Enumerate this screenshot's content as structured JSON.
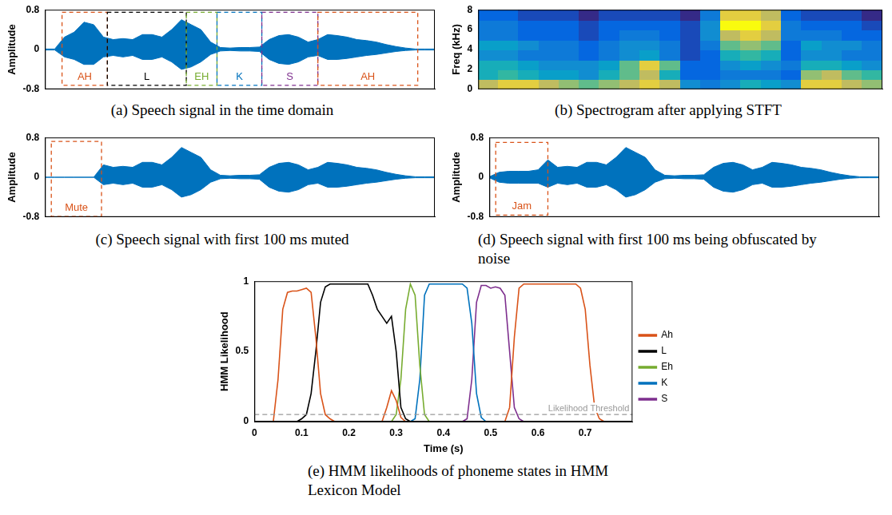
{
  "chart_data": [
    {
      "type": "area",
      "caption": "(a) Speech signal in the time domain",
      "y_label": "Amplitude",
      "xlim": [
        0,
        0.8
      ],
      "ylim": [
        -0.8,
        0.8
      ],
      "yticks": [
        -0.8,
        0,
        0.8
      ],
      "tick_labels": "y",
      "grid": false,
      "color": "#0072bd",
      "x": [
        0,
        0.02,
        0.04,
        0.06,
        0.08,
        0.1,
        0.12,
        0.14,
        0.16,
        0.18,
        0.2,
        0.22,
        0.24,
        0.26,
        0.28,
        0.3,
        0.32,
        0.34,
        0.36,
        0.38,
        0.4,
        0.42,
        0.44,
        0.46,
        0.48,
        0.5,
        0.52,
        0.54,
        0.56,
        0.58,
        0.6,
        0.62,
        0.64,
        0.66,
        0.68,
        0.7,
        0.72,
        0.74,
        0.76,
        0.78,
        0.8
      ],
      "upper": [
        0.01,
        0.01,
        0.25,
        0.35,
        0.55,
        0.5,
        0.25,
        0.2,
        0.22,
        0.2,
        0.3,
        0.3,
        0.25,
        0.4,
        0.6,
        0.5,
        0.4,
        0.15,
        0.04,
        0.03,
        0.04,
        0.04,
        0.05,
        0.2,
        0.28,
        0.3,
        0.25,
        0.15,
        0.2,
        0.3,
        0.28,
        0.25,
        0.2,
        0.18,
        0.15,
        0.1,
        0.06,
        0.03,
        0.01,
        0.01,
        0.01
      ],
      "lower": [
        -0.01,
        -0.01,
        -0.15,
        -0.2,
        -0.3,
        -0.3,
        -0.15,
        -0.12,
        -0.15,
        -0.12,
        -0.2,
        -0.2,
        -0.15,
        -0.25,
        -0.4,
        -0.35,
        -0.25,
        -0.1,
        -0.03,
        -0.02,
        -0.03,
        -0.03,
        -0.04,
        -0.2,
        -0.28,
        -0.3,
        -0.25,
        -0.15,
        -0.12,
        -0.2,
        -0.2,
        -0.18,
        -0.15,
        -0.12,
        -0.1,
        -0.07,
        -0.04,
        -0.02,
        -0.01,
        -0.01,
        -0.01
      ],
      "segments": [
        {
          "label": "AH",
          "start": 0.035,
          "end": 0.128,
          "bottom": -0.72,
          "top": 0.75,
          "color": "#d95319"
        },
        {
          "label": "L",
          "start": 0.128,
          "end": 0.29,
          "bottom": -0.72,
          "top": 0.75,
          "color": "#000000"
        },
        {
          "label": "EH",
          "start": 0.29,
          "end": 0.353,
          "bottom": -0.72,
          "top": 0.75,
          "color": "#77ac30"
        },
        {
          "label": "K",
          "start": 0.353,
          "end": 0.445,
          "bottom": -0.72,
          "top": 0.75,
          "color": "#0072bd"
        },
        {
          "label": "S",
          "start": 0.445,
          "end": 0.56,
          "bottom": -0.72,
          "top": 0.75,
          "color": "#7e2f8e"
        },
        {
          "label": "AH",
          "start": 0.56,
          "end": 0.765,
          "bottom": -0.72,
          "top": 0.75,
          "color": "#d95319"
        }
      ]
    },
    {
      "type": "heatmap",
      "caption": "(b) Spectrogram after applying STFT",
      "y_label": "Freq (kHz)",
      "xlim": [
        0,
        0.8
      ],
      "ylim": [
        0,
        8
      ],
      "yticks": [
        0,
        2,
        4,
        6,
        8
      ],
      "tick_labels": "y",
      "grid": false,
      "time_bins": [
        0,
        0.04,
        0.08,
        0.12,
        0.16,
        0.2,
        0.24,
        0.28,
        0.32,
        0.36,
        0.4,
        0.44,
        0.48,
        0.52,
        0.56,
        0.6,
        0.64,
        0.68,
        0.72,
        0.76,
        0.8
      ],
      "freq_bins": [
        0,
        1,
        2,
        3,
        4,
        5,
        6,
        7,
        8
      ],
      "cells": [
        [
          0.8,
          0.85,
          0.85,
          0.8,
          0.75,
          0.7,
          0.75,
          0.8,
          0.85,
          0.8,
          0.5,
          0.45,
          0.5,
          0.6,
          0.55,
          0.5,
          0.85,
          0.85,
          0.8,
          0.75
        ],
        [
          0.6,
          0.65,
          0.6,
          0.55,
          0.55,
          0.5,
          0.6,
          0.7,
          0.8,
          0.6,
          0.4,
          0.4,
          0.45,
          0.45,
          0.45,
          0.4,
          0.75,
          0.8,
          0.7,
          0.65
        ],
        [
          0.6,
          0.6,
          0.55,
          0.5,
          0.5,
          0.5,
          0.55,
          0.7,
          0.85,
          0.7,
          0.4,
          0.4,
          0.5,
          0.55,
          0.5,
          0.45,
          0.6,
          0.6,
          0.55,
          0.5
        ],
        [
          0.5,
          0.5,
          0.45,
          0.45,
          0.45,
          0.4,
          0.45,
          0.5,
          0.55,
          0.45,
          0.35,
          0.4,
          0.6,
          0.65,
          0.6,
          0.4,
          0.5,
          0.5,
          0.45,
          0.45
        ],
        [
          0.55,
          0.55,
          0.5,
          0.45,
          0.45,
          0.4,
          0.45,
          0.5,
          0.5,
          0.45,
          0.35,
          0.45,
          0.7,
          0.75,
          0.7,
          0.4,
          0.55,
          0.5,
          0.5,
          0.45
        ],
        [
          0.45,
          0.45,
          0.4,
          0.4,
          0.4,
          0.35,
          0.4,
          0.45,
          0.45,
          0.4,
          0.35,
          0.5,
          0.8,
          0.85,
          0.8,
          0.45,
          0.45,
          0.45,
          0.4,
          0.4
        ],
        [
          0.45,
          0.45,
          0.4,
          0.4,
          0.4,
          0.35,
          0.4,
          0.4,
          0.4,
          0.4,
          0.35,
          0.5,
          0.9,
          0.9,
          0.85,
          0.45,
          0.4,
          0.4,
          0.4,
          0.35
        ],
        [
          0.4,
          0.4,
          0.35,
          0.35,
          0.35,
          0.3,
          0.35,
          0.35,
          0.35,
          0.35,
          0.3,
          0.45,
          0.85,
          0.85,
          0.8,
          0.4,
          0.35,
          0.35,
          0.35,
          0.3
        ]
      ]
    },
    {
      "type": "area",
      "caption": "(c) Speech signal with first 100 ms muted",
      "y_label": "Amplitude",
      "xlim": [
        0,
        0.8
      ],
      "ylim": [
        -0.8,
        0.8
      ],
      "yticks": [
        -0.8,
        0,
        0.8
      ],
      "tick_labels": "y",
      "grid": false,
      "color": "#0072bd",
      "x": [
        0,
        0.02,
        0.04,
        0.06,
        0.08,
        0.1,
        0.12,
        0.14,
        0.16,
        0.18,
        0.2,
        0.22,
        0.24,
        0.26,
        0.28,
        0.3,
        0.32,
        0.34,
        0.36,
        0.38,
        0.4,
        0.42,
        0.44,
        0.46,
        0.48,
        0.5,
        0.52,
        0.54,
        0.56,
        0.58,
        0.6,
        0.62,
        0.64,
        0.66,
        0.68,
        0.7,
        0.72,
        0.74,
        0.76,
        0.78,
        0.8
      ],
      "upper": [
        0,
        0,
        0,
        0,
        0,
        0,
        0.25,
        0.2,
        0.22,
        0.2,
        0.3,
        0.3,
        0.25,
        0.4,
        0.6,
        0.5,
        0.4,
        0.15,
        0.04,
        0.03,
        0.04,
        0.04,
        0.05,
        0.2,
        0.28,
        0.3,
        0.25,
        0.15,
        0.2,
        0.3,
        0.28,
        0.25,
        0.2,
        0.18,
        0.15,
        0.1,
        0.06,
        0.03,
        0.01,
        0.01,
        0.01
      ],
      "lower": [
        0,
        0,
        0,
        0,
        0,
        0,
        -0.15,
        -0.12,
        -0.15,
        -0.12,
        -0.2,
        -0.2,
        -0.15,
        -0.25,
        -0.4,
        -0.35,
        -0.25,
        -0.1,
        -0.03,
        -0.02,
        -0.03,
        -0.03,
        -0.04,
        -0.2,
        -0.28,
        -0.3,
        -0.25,
        -0.15,
        -0.12,
        -0.2,
        -0.2,
        -0.18,
        -0.15,
        -0.12,
        -0.1,
        -0.07,
        -0.04,
        -0.02,
        -0.01,
        -0.01,
        -0.01
      ],
      "segments": [
        {
          "label": "Mute",
          "start": 0.013,
          "end": 0.116,
          "bottom": -0.79,
          "top": 0.72,
          "color": "#d95319"
        }
      ]
    },
    {
      "type": "area",
      "caption": "(d) Speech signal with first 100 ms being obfuscated by noise",
      "y_label": "Amplitude",
      "xlim": [
        0,
        0.8
      ],
      "ylim": [
        -0.8,
        0.8
      ],
      "yticks": [
        -0.8,
        0,
        0.8
      ],
      "tick_labels": "y",
      "grid": false,
      "color": "#0072bd",
      "x": [
        0,
        0.02,
        0.04,
        0.06,
        0.08,
        0.1,
        0.12,
        0.14,
        0.16,
        0.18,
        0.2,
        0.22,
        0.24,
        0.26,
        0.28,
        0.3,
        0.32,
        0.34,
        0.36,
        0.38,
        0.4,
        0.42,
        0.44,
        0.46,
        0.48,
        0.5,
        0.52,
        0.54,
        0.56,
        0.58,
        0.6,
        0.62,
        0.64,
        0.66,
        0.68,
        0.7,
        0.72,
        0.74,
        0.76,
        0.78,
        0.8
      ],
      "upper": [
        0.01,
        0.1,
        0.12,
        0.12,
        0.12,
        0.15,
        0.35,
        0.2,
        0.22,
        0.2,
        0.3,
        0.3,
        0.25,
        0.4,
        0.6,
        0.5,
        0.4,
        0.15,
        0.04,
        0.03,
        0.04,
        0.04,
        0.05,
        0.2,
        0.28,
        0.3,
        0.25,
        0.15,
        0.2,
        0.3,
        0.28,
        0.25,
        0.2,
        0.18,
        0.15,
        0.1,
        0.06,
        0.03,
        0.01,
        0.01,
        0.01
      ],
      "lower": [
        -0.01,
        -0.1,
        -0.12,
        -0.12,
        -0.12,
        -0.12,
        -0.2,
        -0.12,
        -0.15,
        -0.12,
        -0.2,
        -0.2,
        -0.15,
        -0.25,
        -0.4,
        -0.35,
        -0.25,
        -0.1,
        -0.03,
        -0.02,
        -0.03,
        -0.03,
        -0.04,
        -0.2,
        -0.28,
        -0.3,
        -0.25,
        -0.15,
        -0.12,
        -0.2,
        -0.2,
        -0.18,
        -0.15,
        -0.12,
        -0.1,
        -0.07,
        -0.04,
        -0.02,
        -0.01,
        -0.01,
        -0.01
      ],
      "segments": [
        {
          "label": "Jam",
          "start": 0.013,
          "end": 0.12,
          "bottom": -0.76,
          "top": 0.7,
          "color": "#d95319"
        }
      ]
    },
    {
      "type": "line",
      "caption": "(e) HMM likelihoods of phoneme states in HMM Lexicon Model",
      "x_label": "Time (s)",
      "y_label": "HMM Likelihood",
      "xlim": [
        0,
        0.8
      ],
      "xticks": [
        0,
        0.1,
        0.2,
        0.3,
        0.4,
        0.5,
        0.6,
        0.7
      ],
      "ylim": [
        0,
        1
      ],
      "yticks": [
        0,
        0.5,
        1
      ],
      "grid": false,
      "legend": "right",
      "threshold": {
        "value": 0.05,
        "label": "Likelihood Threshold",
        "color": "#999999",
        "line_style": "dashed"
      },
      "x": [
        0,
        0.01,
        0.02,
        0.03,
        0.04,
        0.05,
        0.06,
        0.07,
        0.08,
        0.09,
        0.1,
        0.11,
        0.12,
        0.13,
        0.14,
        0.15,
        0.16,
        0.17,
        0.18,
        0.19,
        0.2,
        0.21,
        0.22,
        0.23,
        0.24,
        0.25,
        0.26,
        0.27,
        0.28,
        0.29,
        0.3,
        0.31,
        0.32,
        0.33,
        0.34,
        0.35,
        0.36,
        0.37,
        0.38,
        0.39,
        0.4,
        0.41,
        0.42,
        0.43,
        0.44,
        0.45,
        0.46,
        0.47,
        0.48,
        0.49,
        0.5,
        0.51,
        0.52,
        0.53,
        0.54,
        0.55,
        0.56,
        0.57,
        0.58,
        0.59,
        0.6,
        0.61,
        0.62,
        0.63,
        0.64,
        0.65,
        0.66,
        0.67,
        0.68,
        0.69,
        0.7,
        0.71,
        0.72,
        0.73,
        0.74,
        0.75,
        0.76,
        0.77,
        0.78
      ],
      "series": [
        {
          "name": "Ah",
          "color": "#d95319",
          "values": [
            0,
            0,
            0,
            0,
            0,
            0.3,
            0.8,
            0.92,
            0.93,
            0.93,
            0.94,
            0.95,
            0.92,
            0.6,
            0.2,
            0.05,
            0.02,
            0,
            0,
            0,
            0,
            0,
            0,
            0,
            0,
            0,
            0,
            0,
            0.1,
            0.22,
            0.15,
            0.03,
            0,
            0,
            0,
            0,
            0,
            0,
            0,
            0,
            0,
            0,
            0,
            0,
            0,
            0,
            0,
            0,
            0,
            0,
            0,
            0,
            0,
            0,
            0.1,
            0.6,
            0.95,
            0.98,
            0.98,
            0.98,
            0.98,
            0.98,
            0.98,
            0.98,
            0.98,
            0.98,
            0.98,
            0.98,
            0.98,
            0.95,
            0.8,
            0.4,
            0.1,
            0.02,
            0,
            0,
            0,
            0,
            0
          ]
        },
        {
          "name": "L",
          "color": "#000000",
          "values": [
            0,
            0,
            0,
            0,
            0,
            0,
            0,
            0,
            0,
            0,
            0.02,
            0.05,
            0.2,
            0.5,
            0.85,
            0.96,
            0.98,
            0.98,
            0.98,
            0.98,
            0.98,
            0.98,
            0.98,
            0.98,
            0.98,
            0.9,
            0.8,
            0.75,
            0.7,
            0.75,
            0.5,
            0.1,
            0.02,
            0,
            0,
            0,
            0,
            0,
            0,
            0,
            0,
            0,
            0,
            0,
            0,
            0,
            0,
            0,
            0,
            0,
            0,
            0,
            0,
            0,
            0,
            0,
            0,
            0,
            0,
            0,
            0,
            0,
            0,
            0,
            0,
            0,
            0,
            0,
            0,
            0,
            0,
            0,
            0,
            0,
            0,
            0,
            0,
            0,
            0
          ]
        },
        {
          "name": "Eh",
          "color": "#77ac30",
          "values": [
            0,
            0,
            0,
            0,
            0,
            0,
            0,
            0,
            0,
            0,
            0,
            0,
            0,
            0,
            0,
            0,
            0,
            0,
            0,
            0,
            0,
            0,
            0,
            0,
            0,
            0,
            0,
            0,
            0,
            0,
            0.05,
            0.3,
            0.8,
            0.98,
            0.9,
            0.4,
            0.05,
            0,
            0,
            0,
            0,
            0,
            0,
            0,
            0,
            0,
            0,
            0,
            0,
            0,
            0,
            0,
            0,
            0,
            0,
            0,
            0,
            0,
            0,
            0,
            0,
            0,
            0,
            0,
            0,
            0,
            0,
            0,
            0,
            0,
            0,
            0,
            0,
            0,
            0,
            0,
            0,
            0,
            0
          ]
        },
        {
          "name": "K",
          "color": "#0072bd",
          "values": [
            0,
            0,
            0,
            0,
            0,
            0,
            0,
            0,
            0,
            0,
            0,
            0,
            0,
            0,
            0,
            0,
            0,
            0,
            0,
            0,
            0,
            0,
            0,
            0,
            0,
            0,
            0,
            0,
            0,
            0,
            0,
            0,
            0,
            0,
            0.02,
            0.3,
            0.9,
            0.98,
            0.98,
            0.98,
            0.98,
            0.98,
            0.98,
            0.98,
            0.98,
            0.95,
            0.7,
            0.2,
            0.03,
            0,
            0,
            0,
            0,
            0,
            0,
            0,
            0,
            0,
            0,
            0,
            0,
            0,
            0,
            0,
            0,
            0,
            0,
            0,
            0,
            0,
            0,
            0,
            0,
            0,
            0,
            0,
            0,
            0,
            0
          ]
        },
        {
          "name": "S",
          "color": "#7e2f8e",
          "values": [
            0,
            0,
            0,
            0,
            0,
            0,
            0,
            0,
            0,
            0,
            0,
            0,
            0,
            0,
            0,
            0,
            0,
            0,
            0,
            0,
            0,
            0,
            0,
            0,
            0,
            0,
            0,
            0,
            0,
            0,
            0,
            0,
            0,
            0,
            0,
            0,
            0,
            0,
            0,
            0,
            0,
            0,
            0,
            0,
            0,
            0.02,
            0.3,
            0.85,
            0.97,
            0.97,
            0.95,
            0.96,
            0.95,
            0.9,
            0.5,
            0.1,
            0.02,
            0,
            0,
            0,
            0,
            0,
            0,
            0,
            0,
            0,
            0,
            0,
            0,
            0,
            0,
            0,
            0,
            0,
            0,
            0,
            0,
            0,
            0
          ]
        }
      ]
    }
  ]
}
